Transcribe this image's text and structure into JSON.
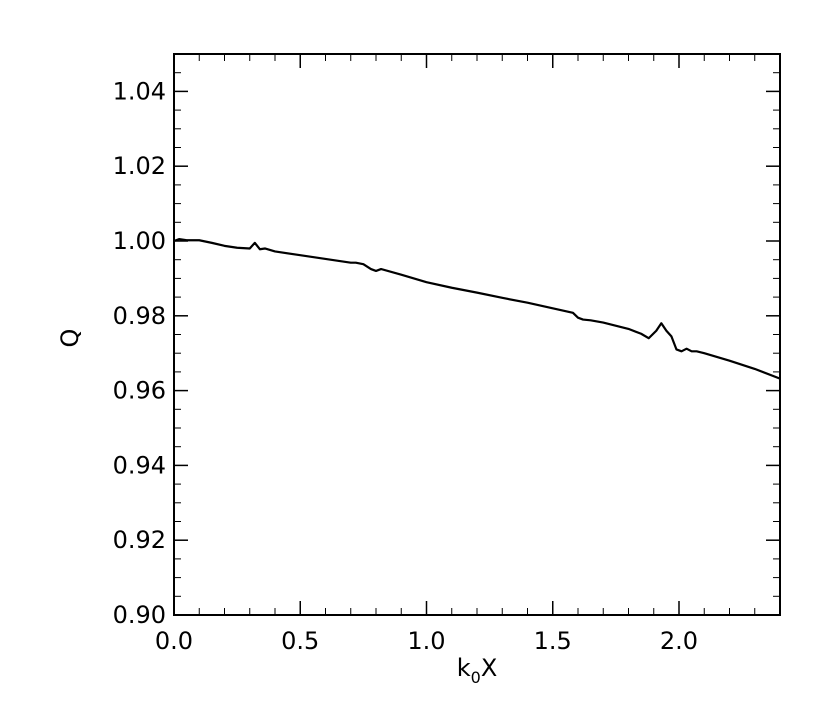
{
  "chart_data": {
    "type": "line",
    "title": "",
    "xlabel": "k0X",
    "xlabel_main": "k",
    "xlabel_sub": "0",
    "xlabel_tail": "X",
    "ylabel": "Q",
    "xlim": [
      0.0,
      2.4
    ],
    "ylim": [
      0.9,
      1.05
    ],
    "x_ticks": [
      0.0,
      0.5,
      1.0,
      1.5,
      2.0
    ],
    "x_tick_labels": [
      "0.0",
      "0.5",
      "1.0",
      "1.5",
      "2.0"
    ],
    "y_ticks": [
      0.9,
      0.92,
      0.94,
      0.96,
      0.98,
      1.0,
      1.02,
      1.04
    ],
    "y_tick_labels": [
      "0.90",
      "0.92",
      "0.94",
      "0.96",
      "0.98",
      "1.00",
      "1.02",
      "1.04"
    ],
    "grid": false,
    "line_color": "#000000",
    "series": [
      {
        "x": [
          0.0,
          0.02,
          0.05,
          0.1,
          0.15,
          0.2,
          0.25,
          0.3,
          0.32,
          0.34,
          0.36,
          0.4,
          0.5,
          0.6,
          0.7,
          0.72,
          0.75,
          0.78,
          0.8,
          0.82,
          0.9,
          1.0,
          1.1,
          1.2,
          1.3,
          1.4,
          1.5,
          1.58,
          1.6,
          1.62,
          1.65,
          1.7,
          1.8,
          1.85,
          1.88,
          1.91,
          1.93,
          1.95,
          1.97,
          1.99,
          2.01,
          2.03,
          2.05,
          2.07,
          2.1,
          2.2,
          2.3,
          2.4
        ],
        "y": [
          1.0,
          1.0005,
          1.0002,
          1.0002,
          0.9995,
          0.9987,
          0.9982,
          0.998,
          0.9995,
          0.9978,
          0.998,
          0.9972,
          0.9962,
          0.9952,
          0.9942,
          0.9942,
          0.9938,
          0.9925,
          0.992,
          0.9925,
          0.991,
          0.989,
          0.9875,
          0.9862,
          0.9848,
          0.9835,
          0.982,
          0.9808,
          0.9795,
          0.979,
          0.9788,
          0.9782,
          0.9765,
          0.9752,
          0.974,
          0.976,
          0.978,
          0.976,
          0.9745,
          0.971,
          0.9705,
          0.9712,
          0.9705,
          0.9705,
          0.97,
          0.968,
          0.9658,
          0.9632
        ]
      }
    ]
  }
}
